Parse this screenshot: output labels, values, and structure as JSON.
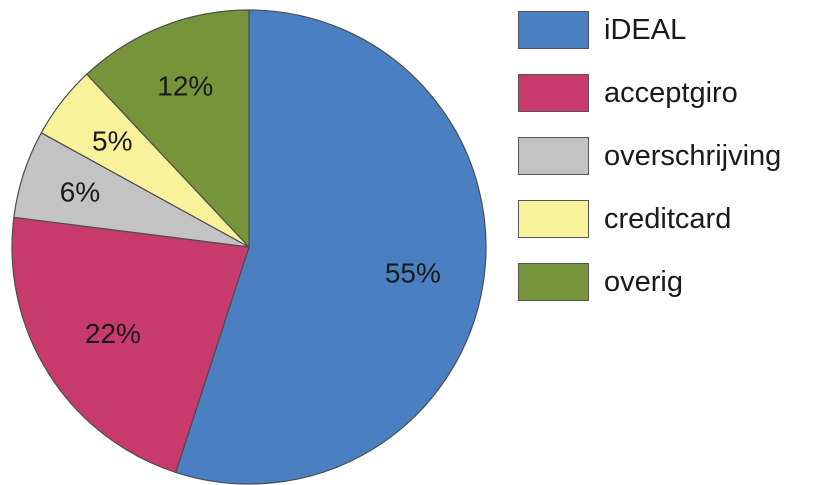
{
  "chart_data": {
    "type": "pie",
    "title": "",
    "legend_position": "right",
    "slices": [
      {
        "name": "iDEAL",
        "value": 55,
        "label": "55%",
        "color": "#4a80c2"
      },
      {
        "name": "acceptgiro",
        "value": 22,
        "label": "22%",
        "color": "#c73a6b"
      },
      {
        "name": "overschrijving",
        "value": 6,
        "label": "6%",
        "color": "#c3c3c3"
      },
      {
        "name": "creditcard",
        "value": 5,
        "label": "5%",
        "color": "#f8f39a"
      },
      {
        "name": "overig",
        "value": 12,
        "label": "12%",
        "color": "#76953a"
      }
    ]
  }
}
